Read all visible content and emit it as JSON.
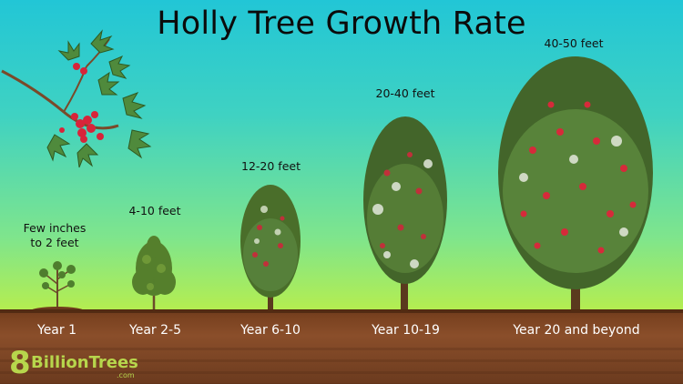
{
  "title": "Holly Tree Growth Rate",
  "stages": [
    {
      "year": "Year 1",
      "height_line1": "Few inches",
      "height_line2": "to 2 feet"
    },
    {
      "year": "Year 2-5",
      "height": "4-10 feet"
    },
    {
      "year": "Year 6-10",
      "height": "12-20 feet"
    },
    {
      "year": "Year 10-19",
      "height": "20-40 feet"
    },
    {
      "year": "Year 20 and beyond",
      "height": "40-50 feet"
    }
  ],
  "logo": {
    "number": "8",
    "name": "BillionTrees",
    "domain": ".com"
  },
  "colors": {
    "sky_top": "#22c6d6",
    "sky_bottom": "#c8ef3c",
    "soil": "#7a4220",
    "berry": "#d8243a",
    "leaf": "#3f6a26",
    "logo": "#b7d64c"
  },
  "icons": [
    "holly-branch-icon",
    "tree-icon"
  ]
}
